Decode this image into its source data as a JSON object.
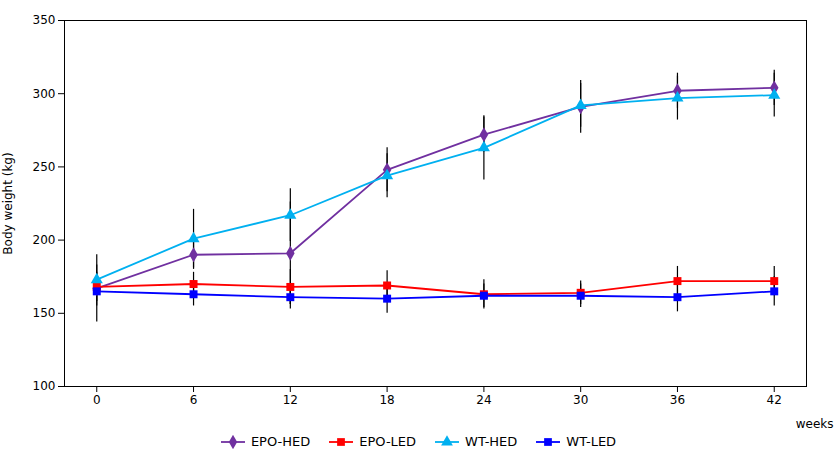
{
  "chart_data": {
    "type": "line",
    "x": [
      0,
      6,
      12,
      18,
      24,
      30,
      36,
      42
    ],
    "xlim": [
      -2,
      44
    ],
    "xticks": [
      0,
      6,
      12,
      18,
      24,
      30,
      36,
      42
    ],
    "ylim": [
      100,
      350
    ],
    "yticks": [
      100,
      150,
      200,
      250,
      300,
      350
    ],
    "xlabel": "weeks",
    "ylabel": "Body weight (kg)",
    "grid": false,
    "legend": "bottom",
    "series": [
      {
        "name": "EPO-HED",
        "color": "#7030A0",
        "marker": "diamond",
        "values": [
          167,
          190,
          191,
          248,
          272,
          291,
          302,
          304
        ],
        "errors": [
          23,
          10,
          35,
          15,
          12,
          18,
          12,
          12
        ]
      },
      {
        "name": "EPO-LED",
        "color": "#FF0000",
        "marker": "square",
        "values": [
          168,
          170,
          168,
          169,
          163,
          164,
          172,
          172
        ],
        "errors": [
          10,
          8,
          12,
          10,
          10,
          8,
          10,
          10
        ]
      },
      {
        "name": "WT-HED",
        "color": "#00B0F0",
        "marker": "triangle",
        "values": [
          173,
          201,
          217,
          244,
          263,
          292,
          297,
          299
        ],
        "errors": [
          10,
          20,
          18,
          15,
          22,
          15,
          15,
          15
        ]
      },
      {
        "name": "WT-LED",
        "color": "#0000FF",
        "marker": "square",
        "values": [
          165,
          163,
          161,
          160,
          162,
          162,
          161,
          165
        ],
        "errors": [
          10,
          8,
          8,
          10,
          8,
          8,
          10,
          10
        ]
      }
    ]
  }
}
